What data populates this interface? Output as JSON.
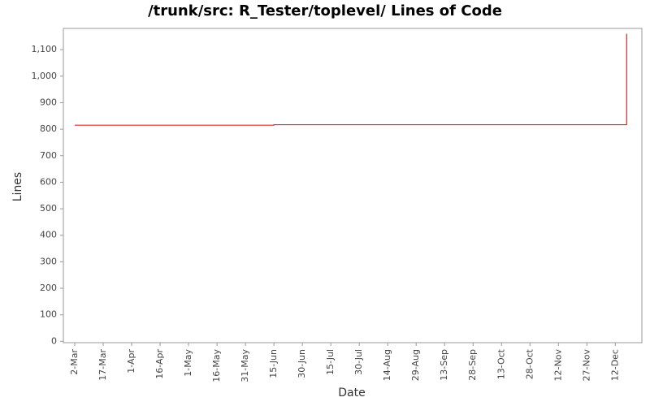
{
  "chart_data": {
    "type": "line",
    "title": "/trunk/src: R_Tester/toplevel/ Lines of Code",
    "x_label": "Date",
    "y_label": "Lines",
    "series": [
      {
        "name": "Lines",
        "color": "#e8262c",
        "x": [
          "2-Mar",
          "15-Jun",
          "15-Jun",
          "18-Dec",
          "18-Dec"
        ],
        "values": [
          815,
          815,
          817,
          817,
          1160
        ]
      }
    ],
    "xlim": [
      "24-Feb",
      "26-Dec"
    ],
    "xticks": [
      "2-Mar",
      "17-Mar",
      "1-Apr",
      "16-Apr",
      "1-May",
      "16-May",
      "31-May",
      "15-Jun",
      "30-Jun",
      "15-Jul",
      "30-Jul",
      "14-Aug",
      "29-Aug",
      "13-Sep",
      "28-Sep",
      "13-Oct",
      "28-Oct",
      "12-Nov",
      "27-Nov",
      "12-Dec"
    ],
    "ylim": [
      -5,
      1180
    ],
    "yticks": [
      0,
      100,
      200,
      300,
      400,
      500,
      600,
      700,
      800,
      900,
      {
        "value": 1000,
        "label": "1,000"
      },
      {
        "value": 1100,
        "label": "1,100"
      }
    ],
    "grid": false
  }
}
